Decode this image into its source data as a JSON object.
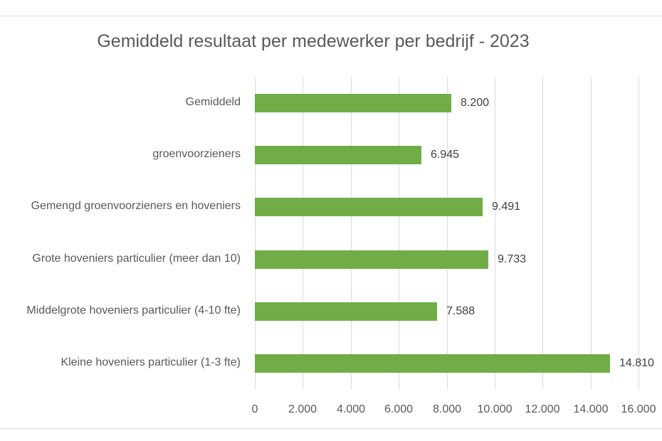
{
  "chart_data": {
    "type": "bar",
    "orientation": "horizontal",
    "title": "Gemiddeld resultaat per medewerker per bedrijf - 2023",
    "categories": [
      "Gemiddeld",
      "groenvoorzieners",
      "Gemengd groenvoorzieners en hoveniers",
      "Grote hoveniers particulier (meer dan 10)",
      "Middelgrote hoveniers particulier (4-10 fte)",
      "Kleine hoveniers particulier (1-3 fte)"
    ],
    "visible_category_labels": [
      "Gemiddeld",
      "groenvoorzieners",
      "Gemengd groenvoorzieners en hoveniers",
      "Grote hoveniers particulier (meer dan 10)",
      "Middelgrote hoveniers particulier (4-10 fte)",
      "Kleine hoveniers particulier (1-3 fte)"
    ],
    "values": [
      8200,
      6945,
      9491,
      9733,
      7588,
      14810
    ],
    "value_labels": [
      "8.200",
      "6.945",
      "9.491",
      "9.733",
      "7.588",
      "14.810"
    ],
    "xlabel": "",
    "ylabel": "",
    "xlim": [
      0,
      16000
    ],
    "x_ticks": [
      0,
      2000,
      4000,
      6000,
      8000,
      10000,
      12000,
      14000,
      16000
    ],
    "x_tick_labels": [
      "0",
      "2.000",
      "4.000",
      "6.000",
      "8.000",
      "10.000",
      "12.000",
      "14.000",
      "16.000"
    ],
    "grid": "vertical",
    "legend": "none",
    "bar_color": "#70AD47"
  },
  "header": {
    "title": "Gemiddeld resultaat per medewerker per bedrijf - 2023"
  }
}
